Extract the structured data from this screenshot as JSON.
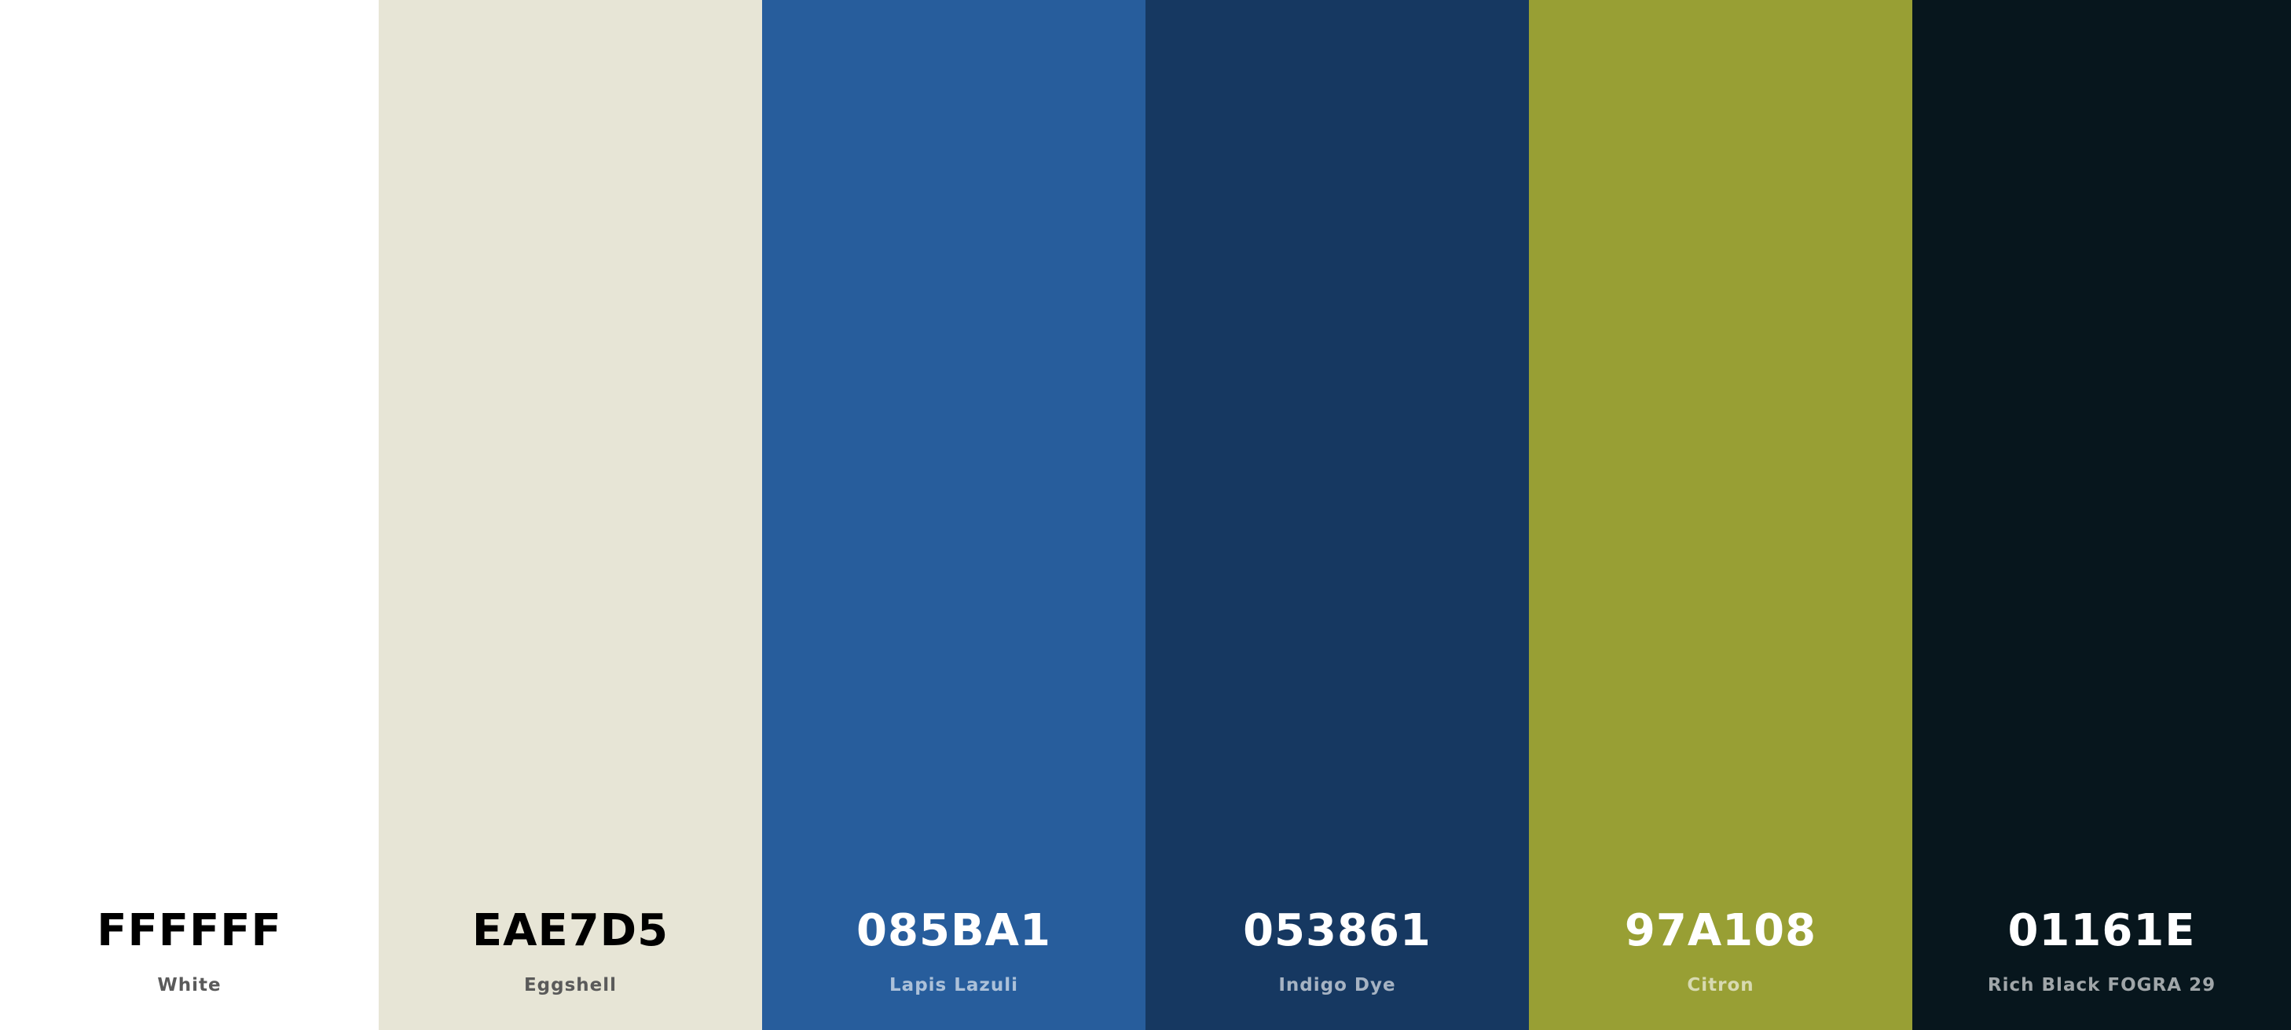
{
  "palette": {
    "swatches": [
      {
        "hex": "FFFFFF",
        "name": "White",
        "color": "#FFFFFF",
        "tone": "light"
      },
      {
        "hex": "EAE7D5",
        "name": "Eggshell",
        "color": "#E7E5D6",
        "tone": "light"
      },
      {
        "hex": "085BA1",
        "name": "Lapis Lazuli",
        "color": "#275D9C",
        "tone": "dark"
      },
      {
        "hex": "053861",
        "name": "Indigo Dye",
        "color": "#163861",
        "tone": "dark"
      },
      {
        "hex": "97A108",
        "name": "Citron",
        "color": "#989F34",
        "tone": "dark"
      },
      {
        "hex": "01161E",
        "name": "Rich Black FOGRA 29",
        "color": "#07161D",
        "tone": "dark"
      }
    ]
  }
}
